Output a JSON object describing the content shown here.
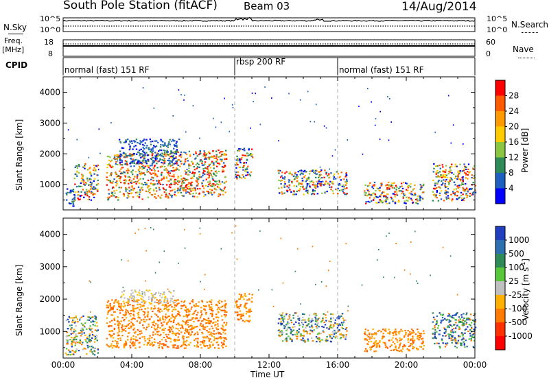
{
  "header": {
    "title": "South Pole Station (fitACF)",
    "beam": "Beam 03",
    "date": "14/Aug/2014"
  },
  "noise_panel": {
    "left_label": "N.Sky",
    "right_label": "N.Search",
    "left_ticks": [
      "10^5",
      "10^0"
    ],
    "right_ticks": [
      "10^5",
      "10^0"
    ]
  },
  "freq_panel": {
    "left_label_1": "Freq.",
    "left_label_2": "[MHz]",
    "right_label": "Nave",
    "left_ticks": [
      "18",
      "8"
    ],
    "right_ticks": [
      "60",
      "0"
    ]
  },
  "cpid": {
    "label": "CPID",
    "segments": [
      {
        "text": "normal (fast) 151 RF",
        "start_hour": 0,
        "end_hour": 10
      },
      {
        "text": "rbsp 200 RF",
        "start_hour": 10,
        "end_hour": 16
      },
      {
        "text": "normal (fast) 151 RF",
        "start_hour": 16,
        "end_hour": 24
      }
    ]
  },
  "chart_data": [
    {
      "type": "heatmap",
      "title": "Power",
      "ylabel": "Slant Range [km]",
      "xlabel": "",
      "ylim": [
        180,
        4500
      ],
      "xlim_hours": [
        0,
        24
      ],
      "yticks": [
        "1000",
        "2000",
        "3000",
        "4000"
      ],
      "colorbar": {
        "label": "Power [dB]",
        "ticks": [
          "28",
          "24",
          "20",
          "16",
          "12",
          "8",
          "4"
        ],
        "colors": [
          "#ff0000",
          "#ff5a00",
          "#ff9a00",
          "#ffcc00",
          "#8ac642",
          "#2e8b57",
          "#1f5fbf",
          "#0000ff"
        ]
      },
      "regions": [
        {
          "x": [
            0.1,
            0.6
          ],
          "y": [
            300,
            900
          ],
          "level": "weak"
        },
        {
          "x": [
            0.6,
            2.0
          ],
          "y": [
            500,
            1700
          ],
          "level": "mixed"
        },
        {
          "x": [
            2.5,
            9.5
          ],
          "y": [
            500,
            2000
          ],
          "level": "strong"
        },
        {
          "x": [
            3.2,
            6.8
          ],
          "y": [
            1700,
            2500
          ],
          "level": "weak"
        },
        {
          "x": [
            10.0,
            11.0
          ],
          "y": [
            1200,
            2200
          ],
          "level": "mixed"
        },
        {
          "x": [
            12.5,
            16.5
          ],
          "y": [
            700,
            1500
          ],
          "level": "mixed"
        },
        {
          "x": [
            17.5,
            21.0
          ],
          "y": [
            400,
            1100
          ],
          "level": "mixed"
        },
        {
          "x": [
            21.5,
            24.0
          ],
          "y": [
            500,
            1700
          ],
          "level": "mixed"
        }
      ]
    },
    {
      "type": "heatmap",
      "title": "Velocity",
      "ylabel": "Slant Range [km]",
      "xlabel": "Time UT",
      "ylim": [
        180,
        4500
      ],
      "xlim_hours": [
        0,
        24
      ],
      "yticks": [
        "1000",
        "2000",
        "3000",
        "4000"
      ],
      "xticks": [
        "00:00",
        "04:00",
        "08:00",
        "12:00",
        "16:00",
        "20:00",
        "00:00"
      ],
      "colorbar": {
        "label": "Velocity [m s",
        "label_exponent": "-1",
        "label_end": "]",
        "ticks": [
          "1000",
          "500",
          "100",
          "25",
          "-25",
          "-100",
          "-500",
          "-1000"
        ],
        "colors": [
          "#1f3fbf",
          "#2e6fb0",
          "#2e8b57",
          "#58c83a",
          "#c0c0c0",
          "#ffb000",
          "#ff7a00",
          "#ff3000",
          "#ff0000"
        ]
      },
      "regions": [
        {
          "x": [
            0.1,
            2.0
          ],
          "y": [
            300,
            1500
          ],
          "level": "mixed"
        },
        {
          "x": [
            2.5,
            9.5
          ],
          "y": [
            500,
            2000
          ],
          "level": "away"
        },
        {
          "x": [
            3.3,
            6.5
          ],
          "y": [
            1900,
            2300
          ],
          "level": "zero"
        },
        {
          "x": [
            10.0,
            11.0
          ],
          "y": [
            1300,
            2200
          ],
          "level": "away"
        },
        {
          "x": [
            12.5,
            16.5
          ],
          "y": [
            700,
            1600
          ],
          "level": "mixed"
        },
        {
          "x": [
            17.5,
            21.0
          ],
          "y": [
            400,
            1100
          ],
          "level": "away"
        },
        {
          "x": [
            21.5,
            24.0
          ],
          "y": [
            500,
            1600
          ],
          "level": "toward"
        }
      ]
    }
  ]
}
